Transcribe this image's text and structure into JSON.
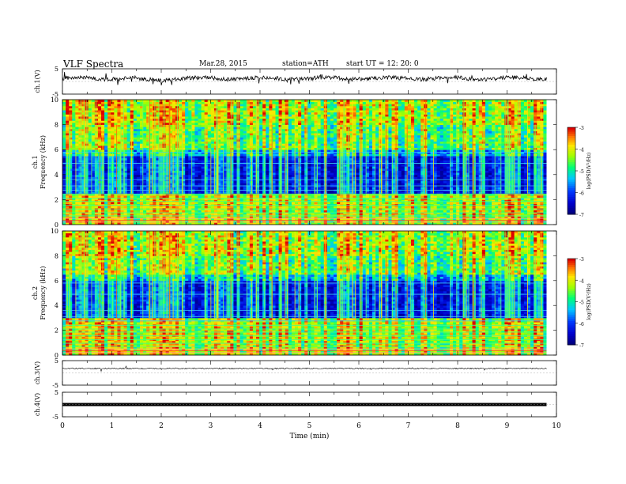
{
  "header": {
    "title": "VLF  Spectra",
    "date": "Mar.28, 2015",
    "station": "station=ATH",
    "start": "start  UT  =    12: 20: 0"
  },
  "chart_data": {
    "type": "heatmap",
    "xlabel": "Time  (min)",
    "xlim": [
      0,
      10
    ],
    "xticks": [
      "0",
      "1",
      "2",
      "3",
      "4",
      "5",
      "6",
      "7",
      "8",
      "9",
      "10"
    ],
    "data_end_min": 9.8,
    "panels": [
      {
        "kind": "waveform",
        "ylabel": "ch.1(V)",
        "ylim": [
          -5,
          5
        ],
        "yticks": [
          "5",
          "-5"
        ],
        "baseline": 1.2,
        "noise": "high"
      },
      {
        "kind": "spectrogram",
        "ylabel": "ch.1\nFrequency  (kHz)",
        "ylim": [
          0,
          10
        ],
        "yticks": [
          "0",
          "2",
          "4",
          "6",
          "8",
          "10"
        ],
        "colorbar": {
          "label": "log(PSD(V²/Hz)",
          "ticks": [
            "-3",
            "-4",
            "-5",
            "-6",
            "-7"
          ],
          "range": [
            -7,
            -3
          ]
        },
        "dark_band_khz": [
          2.5,
          5.5
        ],
        "noisy_band_khz": [
          6,
          10
        ],
        "low_band_khz": [
          0,
          2.5
        ]
      },
      {
        "kind": "spectrogram",
        "ylabel": "ch.2\nFrequency  (kHz)",
        "ylim": [
          0,
          10
        ],
        "yticks": [
          "0",
          "2",
          "4",
          "6",
          "8",
          "10"
        ],
        "colorbar": {
          "label": "log(PSD(V²/Hz)",
          "ticks": [
            "-3",
            "-4",
            "-5",
            "-6",
            "-7"
          ],
          "range": [
            -7,
            -3
          ]
        },
        "dark_band_khz": [
          3,
          6
        ],
        "noisy_band_khz": [
          6.5,
          10
        ],
        "low_band_khz": [
          0,
          3
        ]
      },
      {
        "kind": "waveform",
        "ylabel": "ch.3(V)",
        "ylim": [
          -5,
          5
        ],
        "yticks": [
          "5",
          "-5"
        ],
        "baseline": 1.8,
        "noise": "low"
      },
      {
        "kind": "waveform",
        "ylabel": "ch.4(V)",
        "ylim": [
          -5,
          5
        ],
        "yticks": [
          "5",
          "-5"
        ],
        "baseline": 0,
        "noise": "thick"
      }
    ]
  }
}
